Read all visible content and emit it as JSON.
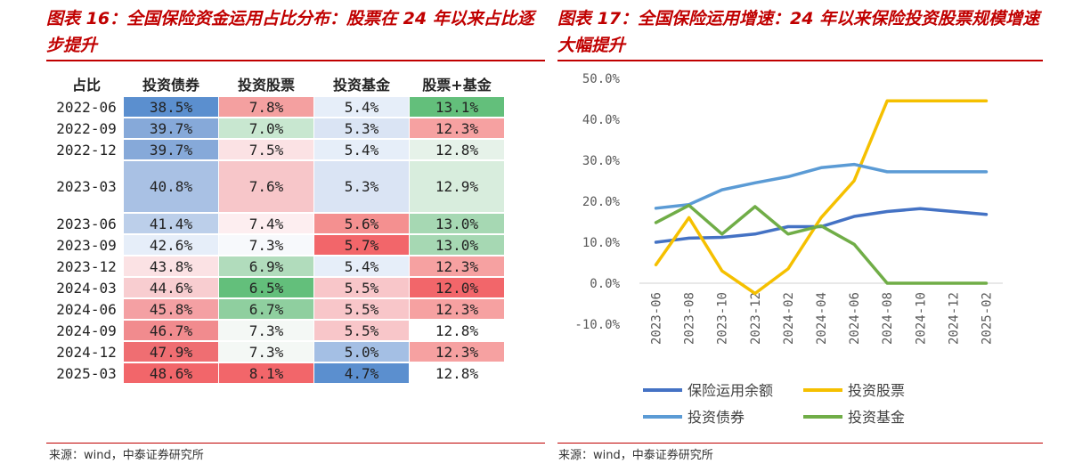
{
  "left": {
    "title": "图表 16：全国保险资金运用占比分布：股票在 24 年以来占比逐步提升",
    "source": "来源：wind，中泰证券研究所"
  },
  "right": {
    "title": "图表 17：全国保险运用增速：24 年以来保险投资股票规模增速大幅提升",
    "source": "来源：wind，中泰证券研究所"
  },
  "chart_data": [
    {
      "type": "table",
      "columns": [
        "占比",
        "投资债券",
        "投资股票",
        "投资基金",
        "股票+基金"
      ],
      "rows": [
        {
          "period": "2022-06",
          "values": [
            "38.5%",
            "7.8%",
            "5.4%",
            "13.1%"
          ],
          "colors": [
            "#5b8fcf",
            "#f4a0a0",
            "#e6eef9",
            "#63bf7b"
          ]
        },
        {
          "period": "2022-09",
          "values": [
            "39.7%",
            "7.0%",
            "5.3%",
            "12.3%"
          ],
          "colors": [
            "#86a9d9",
            "#c8e7d0",
            "#dae4f4",
            "#f6a1a1"
          ]
        },
        {
          "period": "2022-12",
          "values": [
            "39.7%",
            "7.5%",
            "5.4%",
            "12.8%"
          ],
          "colors": [
            "#86a9d9",
            "#fbe2e4",
            "#e6eef9",
            "#e6f2e9"
          ]
        },
        {
          "period": "2023-03",
          "values": [
            "40.8%",
            "7.6%",
            "5.3%",
            "12.9%"
          ],
          "colors": [
            "#a9c1e4",
            "#f7c6c9",
            "#dae4f4",
            "#d8eddd"
          ]
        },
        {
          "period": "2023-06",
          "values": [
            "41.4%",
            "7.4%",
            "5.6%",
            "13.0%"
          ],
          "colors": [
            "#bccfea",
            "#fdeef0",
            "#f49090",
            "#a6d8b3"
          ]
        },
        {
          "period": "2023-09",
          "values": [
            "42.6%",
            "7.3%",
            "5.7%",
            "13.0%"
          ],
          "colors": [
            "#e6eef9",
            "#f7f9fc",
            "#f2666a",
            "#a6d8b3"
          ]
        },
        {
          "period": "2023-12",
          "values": [
            "43.8%",
            "6.9%",
            "5.4%",
            "12.3%"
          ],
          "colors": [
            "#fbe2e4",
            "#b1dcbc",
            "#e6eef9",
            "#f6a1a1"
          ]
        },
        {
          "period": "2024-03",
          "values": [
            "44.6%",
            "6.5%",
            "5.5%",
            "12.0%"
          ],
          "colors": [
            "#f8cdd0",
            "#63bf7b",
            "#f8c6c9",
            "#f2666a"
          ]
        },
        {
          "period": "2024-06",
          "values": [
            "45.8%",
            "6.7%",
            "5.5%",
            "12.3%"
          ],
          "colors": [
            "#f4a0a3",
            "#8fcf9f",
            "#f8c6c9",
            "#f6a1a1"
          ]
        },
        {
          "period": "2024-09",
          "values": [
            "46.7%",
            "7.3%",
            "5.5%",
            "12.8%"
          ],
          "colors": [
            "#f18b8e",
            "#f4f8f5",
            "#f8c6c9",
            "#ffffff"
          ]
        },
        {
          "period": "2024-12",
          "values": [
            "47.9%",
            "7.3%",
            "5.0%",
            "12.3%"
          ],
          "colors": [
            "#ef6e72",
            "#f4f8f5",
            "#a4bfe4",
            "#f6a1a1"
          ]
        },
        {
          "period": "2025-03",
          "values": [
            "48.6%",
            "8.1%",
            "4.7%",
            "12.8%"
          ],
          "colors": [
            "#f2666a",
            "#f2666a",
            "#5b8fcf",
            "#ffffff"
          ]
        }
      ]
    },
    {
      "type": "line",
      "x": [
        "2023-06",
        "2023-08",
        "2023-10",
        "2023-12",
        "2024-02",
        "2024-04",
        "2024-06",
        "2024-08",
        "2024-10",
        "2024-12",
        "2025-02"
      ],
      "ylim": [
        -10,
        50
      ],
      "yticks": [
        "50.0%",
        "40.0%",
        "30.0%",
        "20.0%",
        "10.0%",
        "0.0%",
        "-10.0%"
      ],
      "legend_position": "bottom",
      "series": [
        {
          "name": "保险运用余额",
          "color": "#4472c4",
          "values": [
            10.0,
            11.0,
            11.2,
            12.0,
            13.8,
            13.8,
            16.3,
            17.5,
            18.2,
            17.5,
            16.8
          ]
        },
        {
          "name": "投资股票",
          "color": "#f5c000",
          "values": [
            4.5,
            16.0,
            3.0,
            -2.5,
            3.5,
            16.0,
            25.0,
            44.5,
            44.5,
            44.5,
            44.5
          ]
        },
        {
          "name": "投资债券",
          "color": "#5b9bd5",
          "values": [
            18.3,
            19.2,
            22.8,
            24.5,
            26.0,
            28.2,
            29.0,
            27.2,
            27.2,
            27.2,
            27.2
          ]
        },
        {
          "name": "投资基金",
          "color": "#70ad47",
          "values": [
            14.8,
            19.0,
            12.0,
            18.7,
            12.0,
            14.0,
            9.5,
            0.0,
            0.0,
            0.0,
            0.0
          ]
        }
      ]
    }
  ]
}
